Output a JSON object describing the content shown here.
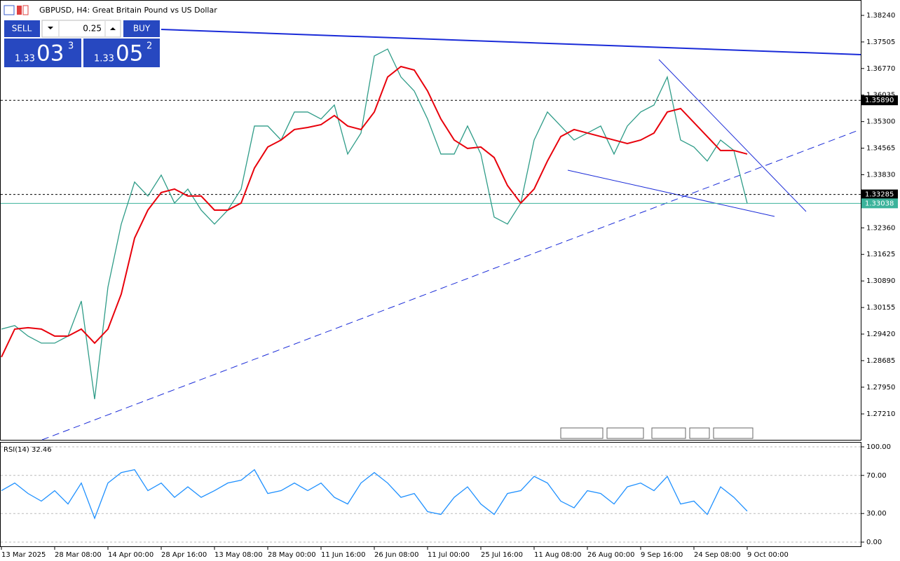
{
  "trade_panel": {
    "sell": "SELL",
    "buy": "BUY",
    "volume": "0.25",
    "bid": {
      "prefix": "1.33",
      "main": "03",
      "sup": "3"
    },
    "ask": {
      "prefix": "1.33",
      "main": "05",
      "sup": "2"
    }
  },
  "chart_data": [
    {
      "type": "line",
      "title": "GBPUSD, H4:  Great Britain Pound vs US Dollar",
      "categories": [
        "13 Mar 2025",
        null,
        null,
        null,
        "28 Mar 08:00",
        null,
        null,
        null,
        "14 Apr 00:00",
        null,
        null,
        null,
        "28 Apr 16:00",
        null,
        null,
        null,
        "13 May 08:00",
        null,
        null,
        null,
        "28 May 00:00",
        null,
        null,
        null,
        "11 Jun 16:00",
        null,
        null,
        null,
        "26 Jun 08:00",
        null,
        null,
        null,
        "11 Jul 00:00",
        null,
        null,
        null,
        "25 Jul 16:00",
        null,
        null,
        null,
        "11 Aug 08:00",
        null,
        null,
        null,
        "26 Aug 00:00",
        null,
        null,
        null,
        "9 Sep 16:00",
        null,
        null,
        null,
        "24 Sep 08:00",
        null,
        null,
        null,
        "9 Oct 00:00"
      ],
      "series": [
        {
          "color": "#2f9c88",
          "values": [
            1.29558,
            1.29655,
            1.29364,
            1.2917,
            1.2917,
            1.29364,
            1.30333,
            1.2762,
            1.30721,
            1.32465,
            1.33628,
            1.3324,
            1.33821,
            1.33046,
            1.33434,
            1.32852,
            1.32465,
            1.32852,
            1.33434,
            1.35178,
            1.35178,
            1.3479,
            1.35566,
            1.35566,
            1.35372,
            1.35759,
            1.34403,
            1.34984,
            1.37116,
            1.3731,
            1.36535,
            1.36147,
            1.35372,
            1.34403,
            1.34403,
            1.35178,
            1.34403,
            1.32659,
            1.32465,
            1.33046,
            1.3479,
            1.35566,
            1.35178,
            1.3479,
            1.34984,
            1.35178,
            1.34403,
            1.35178,
            1.35566,
            1.35759,
            1.36535,
            1.3479,
            1.34597,
            1.34209,
            1.3479,
            1.345,
            1.33038
          ]
        },
        {
          "color": "#e8000b",
          "values": [
            1.28783,
            1.29558,
            1.29597,
            1.29558,
            1.29364,
            1.29364,
            1.29558,
            1.2917,
            1.29558,
            1.30527,
            1.32077,
            1.32852,
            1.33337,
            1.33434,
            1.3324,
            1.3324,
            1.32852,
            1.32852,
            1.33046,
            1.34015,
            1.34597,
            1.3479,
            1.35081,
            1.35139,
            1.35217,
            1.35469,
            1.35178,
            1.35081,
            1.35566,
            1.36535,
            1.36825,
            1.36728,
            1.36147,
            1.35372,
            1.3479,
            1.34558,
            1.34597,
            1.34306,
            1.33531,
            1.33046,
            1.33434,
            1.34209,
            1.34887,
            1.35081,
            1.34984,
            1.34887,
            1.3479,
            1.34693,
            1.3479,
            1.34984,
            1.35566,
            1.35662,
            1.35275,
            1.34887,
            1.345,
            1.345,
            1.34403
          ]
        }
      ],
      "ylim": [
        1.26493,
        1.38666
      ],
      "yticks": [
        {
          "value": 1.3824,
          "label": "1.38240"
        },
        {
          "value": 1.37505,
          "label": "1.37505"
        },
        {
          "value": 1.3677,
          "label": "1.36770"
        },
        {
          "value": 1.36035,
          "label": "1.36035"
        },
        {
          "value": 1.353,
          "label": "1.35300"
        },
        {
          "value": 1.34565,
          "label": "1.34565"
        },
        {
          "value": 1.3383,
          "label": "1.33830"
        },
        {
          "value": 1.3236,
          "label": "1.32360"
        },
        {
          "value": 1.31625,
          "label": "1.31625"
        },
        {
          "value": 1.3089,
          "label": "1.30890"
        },
        {
          "value": 1.30155,
          "label": "1.30155"
        },
        {
          "value": 1.2942,
          "label": "1.29420"
        },
        {
          "value": 1.28685,
          "label": "1.28685"
        },
        {
          "value": 1.2795,
          "label": "1.27950"
        },
        {
          "value": 1.2721,
          "label": "1.27210"
        }
      ],
      "levels": [
        {
          "value": 1.3589,
          "label": "1.35890",
          "color": "#000000",
          "style": "dotted"
        },
        {
          "value": 1.33285,
          "label": "1.33285",
          "color": "#000000",
          "style": "dotted"
        },
        {
          "value": 1.33038,
          "label": "1.33038",
          "color": "#3cb39b",
          "style": "solid"
        }
      ]
    },
    {
      "type": "line",
      "title": "RSI(14) 32.46",
      "series": [
        {
          "color": "#1e90ff",
          "values": [
            54,
            62,
            51,
            43,
            54,
            40,
            62,
            25,
            62,
            73,
            76,
            54,
            62,
            47,
            58,
            47,
            54,
            62,
            65,
            76,
            51,
            54,
            62,
            54,
            62,
            47,
            40,
            62,
            73,
            62,
            47,
            51,
            32,
            29,
            47,
            58,
            40,
            29,
            51,
            54,
            69,
            62,
            43,
            36,
            54,
            51,
            40,
            58,
            62,
            54,
            69,
            40,
            43,
            29,
            58,
            47,
            32.46
          ]
        }
      ],
      "ylim": [
        -4.4,
        104.4
      ],
      "yticks": [
        {
          "value": 100,
          "label": "100.00"
        },
        {
          "value": 70,
          "label": "70.00"
        },
        {
          "value": 30,
          "label": "30.00"
        },
        {
          "value": 0,
          "label": "0.00"
        }
      ]
    }
  ]
}
